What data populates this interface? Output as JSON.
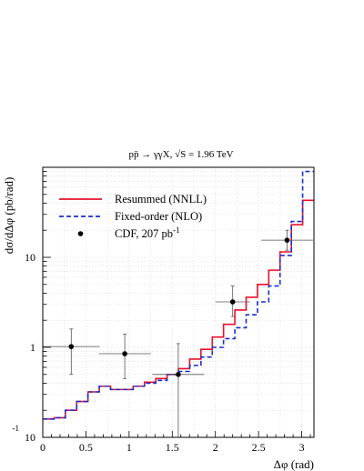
{
  "chart_data": {
    "type": "line",
    "title": "pp̄ → γγX, √S = 1.96 TeV",
    "xlabel": "Δφ (rad)",
    "ylabel": "dσ/dΔφ (pb/rad)",
    "xlim": [
      0,
      3.14159
    ],
    "ylim": [
      0.1,
      100
    ],
    "y_scale": "log",
    "grid": true,
    "legend_position": "top-left",
    "x_ticks": [
      {
        "value": 0,
        "label": "0"
      },
      {
        "value": 0.5,
        "label": "0.5"
      },
      {
        "value": 1,
        "label": "1"
      },
      {
        "value": 1.5,
        "label": "1.5"
      },
      {
        "value": 2,
        "label": "2"
      },
      {
        "value": 2.5,
        "label": "2.5"
      },
      {
        "value": 3,
        "label": "3"
      }
    ],
    "y_ticks": [
      {
        "value": 0.1,
        "label": "10",
        "sup": "-1"
      },
      {
        "value": 1,
        "label": "1",
        "sup": ""
      },
      {
        "value": 10,
        "label": "10",
        "sup": ""
      }
    ],
    "bin_edges": [
      0,
      0.1309,
      0.2618,
      0.3927,
      0.5236,
      0.6545,
      0.7854,
      0.9163,
      1.0472,
      1.1781,
      1.309,
      1.4399,
      1.5708,
      1.7017,
      1.8326,
      1.9635,
      2.0944,
      2.2253,
      2.3562,
      2.4871,
      2.618,
      2.7489,
      2.8798,
      3.0107,
      3.1416
    ],
    "series": [
      {
        "name": "Resummed (NNLL)",
        "style": "solid-step",
        "color": "#e8102a",
        "values": [
          0.16,
          0.165,
          0.2,
          0.25,
          0.32,
          0.37,
          0.34,
          0.34,
          0.37,
          0.41,
          0.45,
          0.5,
          0.58,
          0.74,
          0.95,
          1.3,
          1.8,
          2.6,
          3.6,
          5.0,
          7.2,
          11.5,
          23.0,
          43.0
        ]
      },
      {
        "name": "Fixed-order (NLO)",
        "style": "dashed-step",
        "color": "#1a2fd0",
        "values": [
          0.16,
          0.165,
          0.2,
          0.25,
          0.32,
          0.37,
          0.34,
          0.34,
          0.37,
          0.4,
          0.43,
          0.5,
          0.54,
          0.63,
          0.78,
          1.0,
          1.25,
          1.65,
          2.3,
          3.2,
          4.8,
          10.5,
          25.0,
          90.0
        ]
      },
      {
        "name": "CDF, 207 pb",
        "name_sup": "-1",
        "style": "points",
        "color": "#000000",
        "points": [
          {
            "x": 0.33,
            "y": 1.02,
            "xerr": 0.33,
            "ylo": 0.5,
            "yhi": 1.6
          },
          {
            "x": 0.95,
            "y": 0.85,
            "xerr": 0.3,
            "ylo": 0.45,
            "yhi": 1.4
          },
          {
            "x": 1.57,
            "y": 0.5,
            "xerr": 0.3,
            "ylo": 0.1,
            "yhi": 1.1
          },
          {
            "x": 2.2,
            "y": 3.2,
            "xerr": 0.2,
            "ylo": 2.2,
            "yhi": 4.8
          },
          {
            "x": 2.83,
            "y": 15.5,
            "xerr": 0.3,
            "ylo": 12.0,
            "yhi": 20.0
          }
        ]
      }
    ]
  }
}
